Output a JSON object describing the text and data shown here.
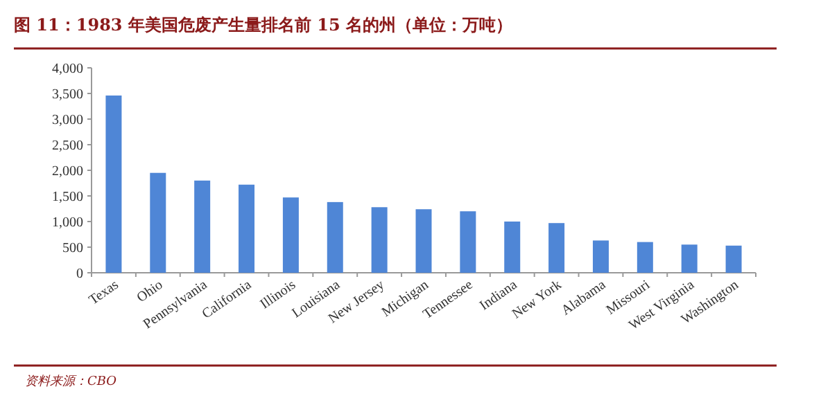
{
  "chart_data": {
    "type": "bar",
    "title": "图 11：1983 年美国危废产生量排名前 15 名的州（单位：万吨）",
    "categories": [
      "Texas",
      "Ohio",
      "Pennsylvania",
      "California",
      "Illinois",
      "Louisiana",
      "New Jersey",
      "Michigan",
      "Tennessee",
      "Indiana",
      "New York",
      "Alabama",
      "Missouri",
      "West Virginia",
      "Washington"
    ],
    "values": [
      3460,
      1950,
      1800,
      1720,
      1470,
      1380,
      1280,
      1240,
      1200,
      1000,
      970,
      630,
      600,
      550,
      530
    ],
    "color": "#4f86d6",
    "ylim": [
      0,
      4000
    ],
    "yticks": [
      0,
      500,
      {
        "value": 1000,
        "label": "1,000"
      },
      {
        "value": 1500,
        "label": "1,500"
      },
      {
        "value": 2000,
        "label": "2,000"
      },
      {
        "value": 2500,
        "label": "2,500"
      },
      {
        "value": 3000,
        "label": "3,000"
      },
      {
        "value": 3500,
        "label": "3,500"
      },
      {
        "value": 4000,
        "label": "4,000"
      }
    ],
    "grid": false,
    "annotations": [
      "资料来源：CBO"
    ]
  }
}
